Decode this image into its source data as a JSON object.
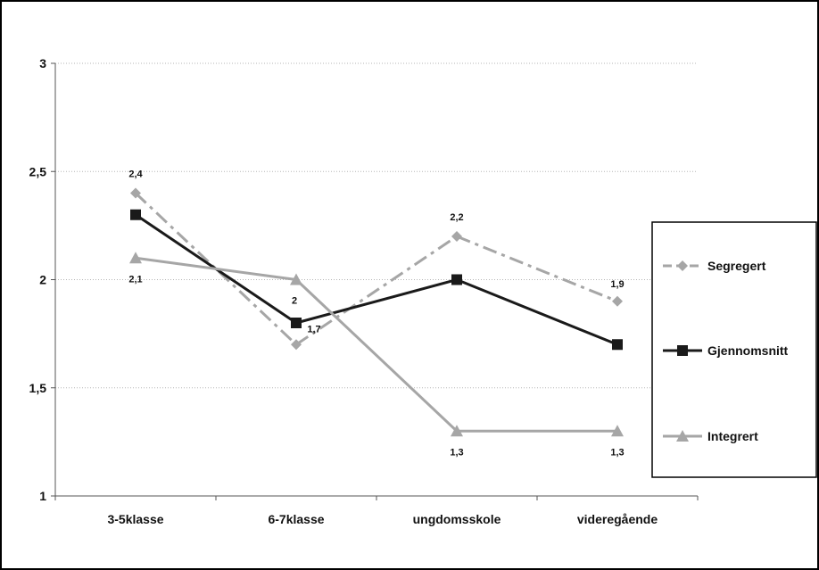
{
  "chart_data": {
    "type": "line",
    "categories": [
      "3-5klasse",
      "6-7klasse",
      "ungdomsskole",
      "videregående"
    ],
    "ylim": [
      1,
      3
    ],
    "yticks": [
      1,
      1.5,
      2,
      2.5,
      3
    ],
    "ytick_labels": [
      "1",
      "1,5",
      "2",
      "2,5",
      "3"
    ],
    "grid": "horizontal",
    "legend_position": "right",
    "series": [
      {
        "name": "Segregert",
        "values": [
          2.4,
          1.7,
          2.2,
          1.9
        ],
        "labels": [
          "2,4",
          "1,7",
          "2,2",
          "1,9"
        ],
        "color": "#a6a6a6",
        "line_style": "dashed",
        "marker": "diamond"
      },
      {
        "name": "Gjennomsnitt",
        "values": [
          2.3,
          1.8,
          2.0,
          1.7
        ],
        "labels": [
          "",
          "",
          "",
          ""
        ],
        "color": "#1a1a1a",
        "line_style": "solid",
        "marker": "square"
      },
      {
        "name": "Integrert",
        "values": [
          2.1,
          2.0,
          1.3,
          1.3
        ],
        "labels": [
          "2,1",
          "2",
          "1,3",
          "1,3"
        ],
        "color": "#a6a6a6",
        "line_style": "solid",
        "marker": "triangle"
      }
    ]
  }
}
